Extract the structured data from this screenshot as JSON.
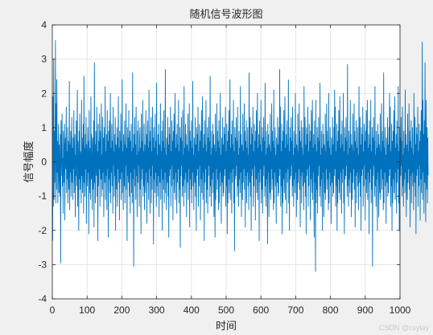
{
  "chart_data": {
    "type": "line",
    "title": "随机信号波形图",
    "xlabel": "时间",
    "ylabel": "信号幅度",
    "xlim": [
      0,
      1000
    ],
    "ylim": [
      -4,
      4
    ],
    "xticks": [
      0,
      100,
      200,
      300,
      400,
      500,
      600,
      700,
      800,
      900,
      1000
    ],
    "yticks": [
      -4,
      -3,
      -2,
      -1,
      0,
      1,
      2,
      3,
      4
    ],
    "grid": true,
    "color": "#0072bd",
    "series": [
      {
        "x_start": 1,
        "x_step": 1,
        "values": [
          -2.3,
          1.9,
          -1.3,
          3.0,
          -1.1,
          0.9,
          -0.6,
          0.4,
          3.55,
          -1.2,
          1.7,
          -0.8,
          2.4,
          -0.3,
          0.6,
          -1.2,
          0.2,
          1.1,
          -0.9,
          0.5,
          -0.2,
          -1.0,
          0.8,
          -2.95,
          1.2,
          -0.4,
          0.3,
          1.4,
          -0.7,
          0.1,
          -1.5,
          0.9,
          0.2,
          -0.6,
          1.1,
          -1.7,
          0.4,
          0.7,
          -0.2,
          1.6,
          -0.9,
          0.3,
          -0.5,
          1.0,
          -1.2,
          0.6,
          0.1,
          -0.8,
          2.35,
          -1.4,
          0.5,
          -0.3,
          0.9,
          -1.0,
          0.2,
          1.3,
          -0.6,
          0.4,
          -1.1,
          0.7,
          -0.2,
          1.5,
          -0.9,
          0.3,
          0.8,
          -1.6,
          0.2,
          -0.4,
          1.2,
          -0.7,
          0.5,
          2.1,
          -1.3,
          0.6,
          -0.1,
          -2.0,
          0.9,
          -0.5,
          1.4,
          -0.8,
          0.3,
          0.0,
          -1.2,
          1.8,
          -0.4,
          0.7,
          -0.9,
          0.2,
          1.1,
          -1.5,
          2.5,
          -0.6,
          0.4,
          -1.0,
          0.8,
          -0.2,
          1.3,
          -1.8,
          0.5,
          0.1,
          -0.7,
          1.0,
          -0.3,
          0.6,
          -2.1,
          1.5,
          -0.9,
          0.2,
          0.4,
          -1.1,
          1.9,
          -0.5,
          0.8,
          -0.2,
          -1.4,
          0.7,
          0.3,
          -0.8,
          1.2,
          -1.9,
          2.9,
          -0.6,
          0.5,
          -1.2,
          0.9,
          0.1,
          -0.4,
          1.6,
          -1.0,
          0.3,
          -2.3,
          1.1,
          -0.7,
          0.6,
          -0.2,
          1.4,
          -1.3,
          0.4,
          0.9,
          -0.5,
          1.7,
          -1.0,
          0.2,
          -0.8,
          1.3,
          -0.3,
          0.7,
          -1.6,
          0.5,
          1.0,
          -0.6,
          2.2,
          -1.1,
          0.3,
          -0.4,
          0.8,
          -1.4,
          1.5,
          -0.2,
          0.6,
          -2.2,
          0.9,
          -0.5,
          1.2,
          -0.9,
          0.2,
          2.0,
          -1.2,
          0.4,
          -0.3,
          1.1,
          -0.7,
          0.6,
          -1.5,
          1.6,
          -0.1,
          0.3,
          -1.0,
          0.8,
          -0.4,
          1.3,
          -2.0,
          0.5,
          0.2,
          -0.8,
          1.0,
          -1.3,
          0.7,
          -0.2,
          1.9,
          -0.6,
          0.4,
          -1.7,
          0.9,
          0.1,
          -0.5,
          1.4,
          -1.1,
          0.6,
          -0.3,
          2.4,
          -0.9,
          0.3,
          -1.4,
          0.8,
          0.2,
          -0.7,
          1.2,
          -1.2,
          0.5,
          -0.1,
          1.7,
          -0.8,
          0.4,
          -2.3,
          1.0,
          -0.4,
          0.7,
          -0.6,
          1.5,
          -1.0,
          0.2,
          0.9,
          -1.5,
          0.6,
          -0.3,
          1.1,
          -0.9,
          0.3,
          -1.2,
          2.6,
          -0.5,
          0.4,
          -3.05,
          0.8,
          -0.2,
          1.3,
          -0.7,
          0.5,
          -1.1,
          1.6,
          -0.4,
          0.2,
          -1.6,
          0.9,
          -0.6,
          1.2,
          -0.1,
          0.3,
          -1.3,
          0.7,
          1.0,
          -0.8,
          0.4,
          -2.1,
          1.4,
          -0.5,
          0.6,
          -0.2,
          1.8,
          -1.0,
          0.3,
          -0.7,
          1.1,
          -1.4,
          0.5,
          0.0,
          -0.9,
          1.5,
          -0.3,
          0.8,
          -1.8,
          0.2,
          1.2,
          -0.6,
          0.4,
          -1.1,
          2.1,
          -0.2,
          0.6,
          -1.5,
          0.9,
          -0.4,
          1.3,
          -1.2,
          0.3,
          -0.8,
          1.6,
          -0.1,
          0.7,
          -2.4,
          1.0,
          -0.5,
          0.4,
          -0.9,
          1.4,
          -0.3,
          0.6,
          -1.3,
          2.3,
          -0.7,
          0.2,
          -1.0,
          0.8,
          -0.4,
          1.1,
          -1.6,
          0.5,
          0.1,
          -0.6,
          1.7,
          -1.1,
          0.3,
          -0.2,
          0.9,
          -2.0,
          1.2,
          -0.5,
          0.6,
          -0.8,
          1.5,
          -1.2,
          0.4,
          -0.3,
          2.7,
          -0.9,
          0.2,
          -1.4,
          0.7,
          0.1,
          -0.6,
          1.3,
          -1.0,
          0.5,
          -2.2,
          1.0,
          -0.4,
          0.8,
          -0.2,
          1.6,
          -1.3,
          0.3,
          -0.7,
          1.2,
          -0.1,
          0.6,
          -1.7,
          0.9,
          -0.5,
          1.4,
          -0.9,
          0.2,
          2.0,
          -1.1,
          0.4,
          -0.3,
          0.8,
          -1.5,
          1.1,
          -0.6,
          0.5,
          -0.2,
          1.8,
          -1.2,
          0.3,
          -0.8,
          1.0,
          -2.5,
          0.7,
          -0.4,
          1.3,
          -0.1,
          0.6,
          -1.0,
          1.5,
          -0.7,
          0.2,
          -1.3,
          2.2,
          -0.5,
          0.4,
          -0.9,
          1.1,
          -0.3,
          0.8,
          -1.6,
          0.5,
          0.1,
          -0.6,
          1.4,
          -1.1,
          0.3,
          -0.2,
          1.7,
          -1.9,
          0.9,
          -0.5,
          0.6,
          -0.8,
          1.2,
          -1.2,
          0.4,
          -0.3,
          2.35,
          -0.7,
          0.2,
          -1.4,
          0.7,
          0.0,
          -0.6,
          1.3,
          -1.0,
          0.5,
          -2.0,
          1.0,
          -0.4,
          0.8,
          -0.2,
          1.6,
          -1.3,
          0.3,
          -0.7,
          1.1,
          -0.1,
          0.6,
          -1.7,
          0.9,
          -0.5,
          1.5,
          -0.9,
          0.2,
          1.9,
          -1.1,
          0.4,
          -0.3,
          0.8,
          -2.3,
          1.2,
          -0.6,
          0.5,
          -0.2,
          1.8,
          -1.2,
          0.3,
          -0.8,
          1.0,
          -1.5,
          0.7,
          -0.4,
          1.3,
          -0.1,
          0.6,
          -1.0,
          2.5,
          -0.7,
          0.2,
          -1.3,
          0.9,
          -0.5,
          0.4,
          -0.9,
          1.1,
          -0.3,
          0.8,
          -1.6,
          0.5,
          0.1,
          -2.2,
          1.4,
          -1.1,
          0.3,
          -0.2,
          1.7,
          -0.8,
          0.9,
          -0.5,
          0.6,
          -1.4,
          1.2,
          -1.2,
          0.4,
          -0.3,
          2.0,
          -0.7,
          0.2,
          -1.8,
          0.7,
          0.1,
          -0.6,
          1.3,
          -1.0,
          0.5,
          -0.9,
          1.0,
          -0.4,
          0.8,
          -0.2,
          1.6,
          -1.3,
          0.3,
          -0.7,
          1.1,
          -2.1,
          0.6,
          -1.2,
          0.9,
          -0.5,
          1.5,
          -0.9,
          0.2,
          2.4,
          -1.1,
          0.4,
          -0.3,
          0.8,
          -1.5,
          1.2,
          -0.6,
          0.5,
          -0.2,
          1.8,
          -1.2,
          0.3,
          -2.6,
          1.0,
          -0.5,
          0.7,
          -0.4,
          1.3,
          -0.1,
          0.6,
          -1.0,
          1.6,
          -0.7,
          0.2,
          -1.3,
          0.9,
          -0.5,
          0.4,
          -0.9,
          2.2,
          -0.3,
          0.8,
          -1.6,
          0.5,
          0.1,
          -1.1,
          1.4,
          -0.6,
          0.3,
          -0.2,
          1.7,
          -0.8,
          0.9,
          -1.9,
          0.6,
          -0.4,
          1.2,
          -1.2,
          0.4,
          -0.3,
          1.0,
          -0.7,
          0.2,
          -1.4,
          2.6,
          0.1,
          -0.6,
          1.3,
          -1.0,
          0.5,
          -2.0,
          1.0,
          -0.4,
          0.8,
          -0.2,
          1.6,
          -1.3,
          0.3,
          -0.7,
          1.1,
          -0.1,
          0.6,
          -1.7,
          0.9,
          -0.5,
          1.5,
          -0.9,
          0.2,
          2.0,
          -1.1,
          0.4,
          -0.3,
          0.8,
          -2.3,
          1.2,
          -0.6,
          0.5,
          -0.2,
          1.8,
          -1.2,
          0.3,
          -0.8,
          1.0,
          -1.5,
          0.7,
          -0.4,
          1.3,
          -0.1,
          0.6,
          -1.0,
          2.3,
          -0.7,
          0.2,
          -1.3,
          0.9,
          -0.5,
          0.4,
          -2.4,
          1.1,
          -0.3,
          0.8,
          -1.6,
          0.5,
          0.1,
          -0.9,
          1.4,
          -1.1,
          0.3,
          -0.2,
          1.7,
          -0.8,
          0.9,
          -0.5,
          0.6,
          -1.4,
          2.1,
          -1.2,
          0.4,
          -0.3,
          1.0,
          -0.7,
          0.2,
          -1.8,
          0.7,
          0.1,
          -0.6,
          1.3,
          -1.0,
          0.5,
          -0.9,
          1.0,
          -0.4,
          2.7,
          -0.2,
          1.6,
          -1.3,
          0.3,
          -0.7,
          1.1,
          -2.1,
          0.6,
          -1.2,
          0.9,
          -0.5,
          1.5,
          -0.9,
          0.2,
          1.9,
          -1.1,
          0.4,
          -0.3,
          0.8,
          -1.5,
          1.2,
          -0.6,
          0.5,
          -0.2,
          2.4,
          -1.2,
          0.3,
          -2.0,
          1.0,
          -0.5,
          0.7,
          -0.4,
          1.3,
          -0.1,
          0.6,
          -1.0,
          1.6,
          -0.7,
          0.2,
          -1.3,
          0.9,
          -0.5,
          0.4,
          -0.9,
          2.0,
          -0.3,
          0.8,
          -1.6,
          0.5,
          0.1,
          -1.1,
          1.4,
          -0.6,
          0.3,
          -0.2,
          1.7,
          -0.8,
          0.9,
          -1.9,
          0.6,
          -0.4,
          1.2,
          -1.2,
          0.4,
          -0.3,
          1.0,
          -0.7,
          0.2,
          -1.4,
          2.2,
          0.1,
          -0.6,
          1.3,
          -1.0,
          0.5,
          -2.1,
          1.0,
          -0.4,
          0.8,
          -0.2,
          1.6,
          -1.3,
          0.3,
          -0.7,
          1.1,
          -0.1,
          0.6,
          -1.7,
          0.9,
          -0.5,
          1.5,
          -0.9,
          0.2,
          1.8,
          -1.1,
          0.4,
          -0.3,
          0.8,
          -2.2,
          1.2,
          -0.6,
          0.5,
          -3.2,
          1.8,
          -1.2,
          0.3,
          -0.8,
          1.0,
          -1.5,
          0.7,
          -0.4,
          1.3,
          -0.1,
          0.6,
          -1.0,
          2.3,
          -0.7,
          0.2,
          -1.3,
          0.9,
          -0.5,
          0.4,
          -2.0,
          1.1,
          -0.3,
          0.8,
          -1.6,
          0.5,
          0.1,
          -0.9,
          1.4,
          -1.1,
          0.3,
          -0.2,
          1.7,
          -0.8,
          0.9,
          -0.5,
          0.6,
          -1.4,
          2.0,
          -1.2,
          0.4,
          -0.3,
          1.0,
          -0.7,
          0.2,
          -1.8,
          0.7,
          0.1,
          -0.6,
          1.3,
          -1.0,
          0.5,
          -0.9,
          1.0,
          -0.4,
          2.1,
          -0.2,
          1.6,
          -1.3,
          0.3,
          -0.7,
          1.1,
          -2.0,
          0.6,
          -1.2,
          0.9,
          -0.5,
          1.5,
          -0.9,
          0.2,
          1.9,
          -1.1,
          0.4,
          -0.3,
          0.8,
          -1.5,
          1.2,
          -0.6,
          0.5,
          -0.2,
          2.0,
          -1.2,
          0.3,
          -2.1,
          1.0,
          -0.5,
          0.7,
          -0.4,
          1.3,
          -0.1,
          0.6,
          -1.0,
          2.85,
          -0.7,
          0.2,
          -1.3,
          0.9,
          -0.5,
          0.4,
          -0.9,
          1.8,
          -0.3,
          0.8,
          -1.6,
          0.5,
          0.1,
          -1.1,
          1.4,
          -0.6,
          0.3,
          -0.2,
          1.7,
          -0.8,
          0.9,
          -1.9,
          0.6,
          -0.4,
          1.2,
          -1.2,
          0.4,
          -0.3,
          1.0,
          -0.7,
          0.2,
          -1.4,
          2.2,
          0.1,
          -0.6,
          1.3,
          -1.0,
          0.5,
          -2.0,
          1.0,
          -0.4,
          0.8,
          -0.2,
          1.6,
          -1.3,
          0.3,
          -0.7,
          1.1,
          -0.1,
          0.6,
          -1.7,
          0.9,
          -0.5,
          1.5,
          -0.9,
          0.2,
          1.8,
          -1.1,
          0.4,
          -0.3,
          0.8,
          -2.1,
          1.2,
          -0.6,
          0.5,
          -0.2,
          1.8,
          -1.2,
          0.3,
          -0.8,
          1.0,
          -3.05,
          0.7,
          -0.4,
          1.3,
          -0.1,
          0.6,
          -1.0,
          2.2,
          -0.7,
          0.2,
          -1.3,
          0.9,
          -0.5,
          0.4,
          -2.0,
          1.1,
          -0.3,
          0.8,
          -1.6,
          0.5,
          0.1,
          -0.9,
          1.4,
          -1.1,
          0.3,
          -0.2,
          1.7,
          -0.8,
          0.9,
          -0.5,
          0.6,
          -1.4,
          2.6,
          -1.2,
          0.4,
          -0.3,
          1.0,
          -0.7,
          0.2,
          -1.8,
          0.7,
          0.1,
          -0.6,
          1.3,
          -1.0,
          0.5,
          -0.9,
          1.0,
          -0.4,
          2.0,
          -0.2,
          1.6,
          -1.3,
          0.3,
          -0.7,
          1.1,
          -2.0,
          0.6,
          -1.2,
          0.9,
          -0.5,
          1.5,
          -0.9,
          0.2,
          1.9,
          -1.1,
          0.4,
          -0.3,
          0.8,
          -1.5,
          1.2,
          -0.6,
          0.5,
          -0.2,
          2.2,
          -1.2,
          0.3,
          -2.0,
          1.0,
          -0.5,
          0.7,
          -0.4,
          1.3,
          -0.1,
          0.6,
          -1.0,
          1.6,
          -0.7,
          0.2,
          -1.3,
          0.9,
          -0.5,
          0.4,
          -0.9,
          2.1,
          -0.3,
          0.8,
          -1.6,
          0.5,
          0.1,
          -1.1,
          1.4,
          -0.6,
          0.3,
          -0.2,
          1.7,
          -0.8,
          0.9,
          -1.9,
          0.6,
          -0.4,
          1.2,
          -1.2,
          0.4,
          -0.3,
          1.0,
          -0.7,
          0.2,
          -1.4,
          2.0,
          0.1,
          -0.6,
          1.3,
          -1.0,
          0.5,
          -2.1,
          1.0,
          -0.4,
          0.8,
          -0.2,
          1.6,
          -1.3,
          0.3,
          -0.7,
          1.1,
          -0.1,
          0.6,
          -1.7,
          0.9,
          -0.5,
          1.5,
          -0.9,
          0.2,
          3.5,
          -1.1,
          1.8,
          -0.3,
          0.8,
          -1.5,
          1.2,
          -0.6,
          2.9,
          -0.2,
          -1.75,
          1.8,
          0.3,
          -0.8,
          1.0,
          -1.2,
          0.7,
          -0.4
        ]
      }
    ]
  },
  "watermark": "CSDN @cxylay"
}
